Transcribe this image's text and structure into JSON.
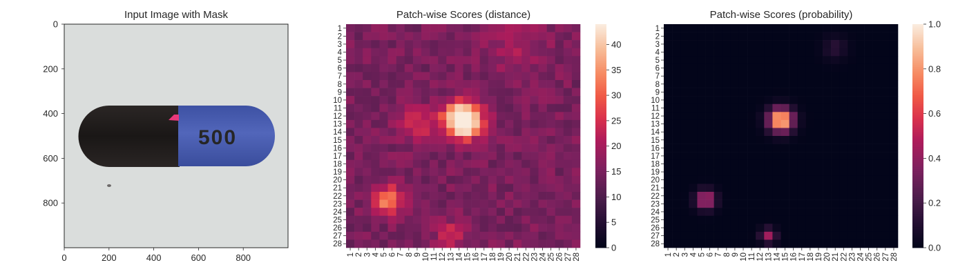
{
  "figure": {
    "panels": [
      {
        "title": "Input Image with Mask",
        "xticks": [
          "0",
          "200",
          "400",
          "600",
          "800"
        ],
        "yticks": [
          "0",
          "200",
          "400",
          "600",
          "800"
        ],
        "image": {
          "capsule_text": "500",
          "background_color": "#d9dcdb",
          "capsule_left_color": "#1e1a19",
          "capsule_right_color": "#4a5eb0",
          "mask_color": "#e8387a"
        }
      },
      {
        "title": "Patch-wise Scores (distance)",
        "colorbar_ticks": [
          "0",
          "5",
          "10",
          "15",
          "20",
          "25",
          "30",
          "35",
          "40"
        ]
      },
      {
        "title": "Patch-wise Scores (probability)",
        "colorbar_ticks": [
          "0.0",
          "0.2",
          "0.4",
          "0.6",
          "0.8",
          "1.0"
        ]
      }
    ]
  },
  "chart_data": [
    {
      "type": "image",
      "title": "Input Image with Mask",
      "xlim": [
        0,
        1000
      ],
      "ylim": [
        1000,
        0
      ],
      "xticks": [
        0,
        200,
        400,
        600,
        800
      ],
      "yticks": [
        0,
        200,
        400,
        600,
        800
      ]
    },
    {
      "type": "heatmap",
      "title": "Patch-wise Scores (distance)",
      "rows": 28,
      "cols": 28,
      "row_labels": [
        "1",
        "2",
        "3",
        "4",
        "5",
        "6",
        "7",
        "8",
        "9",
        "10",
        "11",
        "12",
        "13",
        "14",
        "15",
        "16",
        "17",
        "18",
        "19",
        "20",
        "21",
        "22",
        "23",
        "24",
        "25",
        "26",
        "27",
        "28"
      ],
      "col_labels": [
        "1",
        "2",
        "3",
        "4",
        "5",
        "6",
        "7",
        "8",
        "9",
        "10",
        "11",
        "12",
        "13",
        "14",
        "15",
        "16",
        "17",
        "18",
        "19",
        "20",
        "21",
        "22",
        "23",
        "24",
        "25",
        "26",
        "27",
        "28"
      ],
      "colormap": "rocket",
      "vmin": 0,
      "vmax": 44,
      "baseline": 15,
      "hotspots": [
        {
          "row": 12.5,
          "col": 14.5,
          "peak": 44,
          "spread": 1.5
        },
        {
          "row": 13,
          "col": 9,
          "peak": 9,
          "spread": 1.6
        },
        {
          "row": 22.5,
          "col": 5.5,
          "peak": 20,
          "spread": 1.2
        },
        {
          "row": 27,
          "col": 13,
          "peak": 9,
          "spread": 1.2
        },
        {
          "row": 3.5,
          "col": 21,
          "peak": 5,
          "spread": 2.5
        }
      ]
    },
    {
      "type": "heatmap",
      "title": "Patch-wise Scores (probability)",
      "rows": 28,
      "cols": 28,
      "row_labels": [
        "1",
        "2",
        "3",
        "4",
        "5",
        "6",
        "7",
        "8",
        "9",
        "10",
        "11",
        "12",
        "13",
        "14",
        "15",
        "16",
        "17",
        "18",
        "19",
        "20",
        "21",
        "22",
        "23",
        "24",
        "25",
        "26",
        "27",
        "28"
      ],
      "col_labels": [
        "1",
        "2",
        "3",
        "4",
        "5",
        "6",
        "7",
        "8",
        "9",
        "10",
        "11",
        "12",
        "13",
        "14",
        "15",
        "16",
        "17",
        "18",
        "19",
        "20",
        "21",
        "22",
        "23",
        "24",
        "25",
        "26",
        "27",
        "28"
      ],
      "colormap": "rocket",
      "vmin": 0.0,
      "vmax": 1.0,
      "baseline": 0.0,
      "hotspots": [
        {
          "row": 12.5,
          "col": 14.5,
          "peak": 1.0,
          "spread": 1.0
        },
        {
          "row": 22.5,
          "col": 5.5,
          "peak": 0.55,
          "spread": 0.8
        },
        {
          "row": 27,
          "col": 13,
          "peak": 0.45,
          "spread": 0.6
        },
        {
          "row": 3.5,
          "col": 21,
          "peak": 0.12,
          "spread": 1.0
        }
      ]
    }
  ]
}
